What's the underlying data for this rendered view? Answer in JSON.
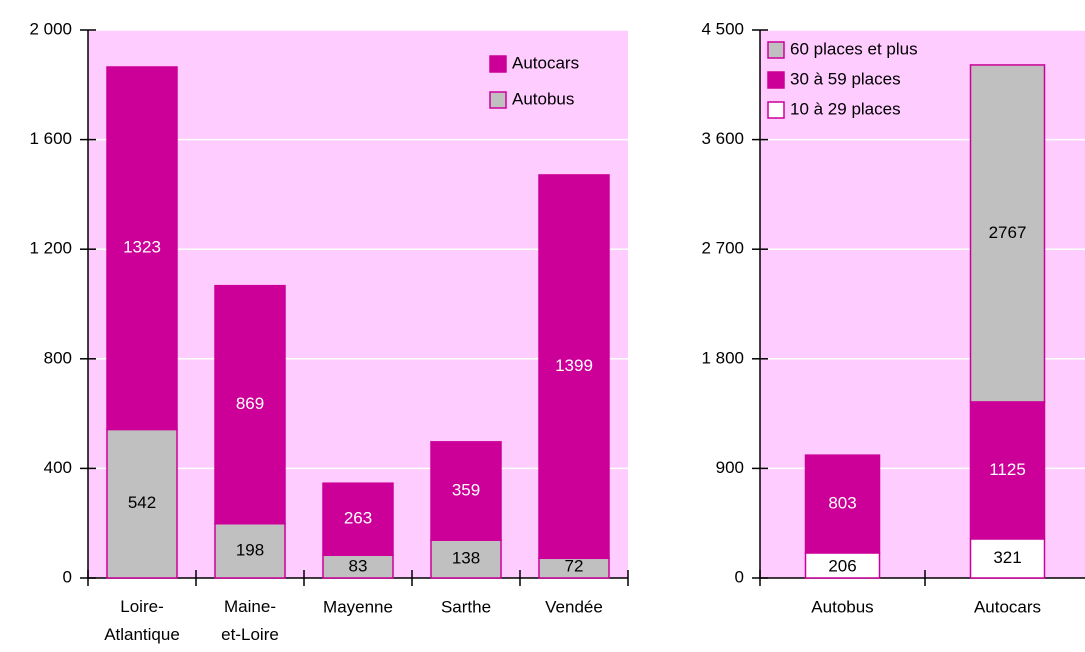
{
  "chart_data": [
    {
      "type": "stacked_bar",
      "categories": [
        "Loire-Atlantique",
        "Maine-et-Loire",
        "Mayenne",
        "Sarthe",
        "Vendée"
      ],
      "series": [
        {
          "name": "Autobus",
          "color": "#c0c0c0",
          "values": [
            542,
            198,
            83,
            138,
            72
          ]
        },
        {
          "name": "Autocars",
          "color": "#cc0099",
          "values": [
            1323,
            869,
            263,
            359,
            1399
          ]
        }
      ],
      "ylim": [
        0,
        2000
      ],
      "yticks": [
        0,
        400,
        800,
        {
          "value": 1200,
          "label": "1 200"
        },
        {
          "value": 1600,
          "label": "1 600"
        },
        {
          "value": 2000,
          "label": "2 000"
        }
      ],
      "grid": true,
      "legend": "upper right",
      "background": "#ffccff"
    },
    {
      "type": "stacked_bar",
      "categories": [
        "Autobus",
        "Autocars"
      ],
      "series": [
        {
          "name": "10 à 29 places",
          "color": "#ffffff",
          "values": [
            206,
            321
          ]
        },
        {
          "name": "30 à 59 places",
          "color": "#cc0099",
          "values": [
            803,
            1125
          ]
        },
        {
          "name": "60 places et plus",
          "color": "#c0c0c0",
          "values": [
            null,
            2767
          ]
        }
      ],
      "ylim": [
        0,
        4500
      ],
      "yticks": [
        0,
        900,
        {
          "value": 1800,
          "label": "1 800"
        },
        {
          "value": 2700,
          "label": "2 700"
        },
        {
          "value": 3600,
          "label": "3 600"
        },
        {
          "value": 4500,
          "label": "4 500"
        }
      ],
      "grid": true,
      "legend": "upper left",
      "background": "#ffccff"
    }
  ]
}
